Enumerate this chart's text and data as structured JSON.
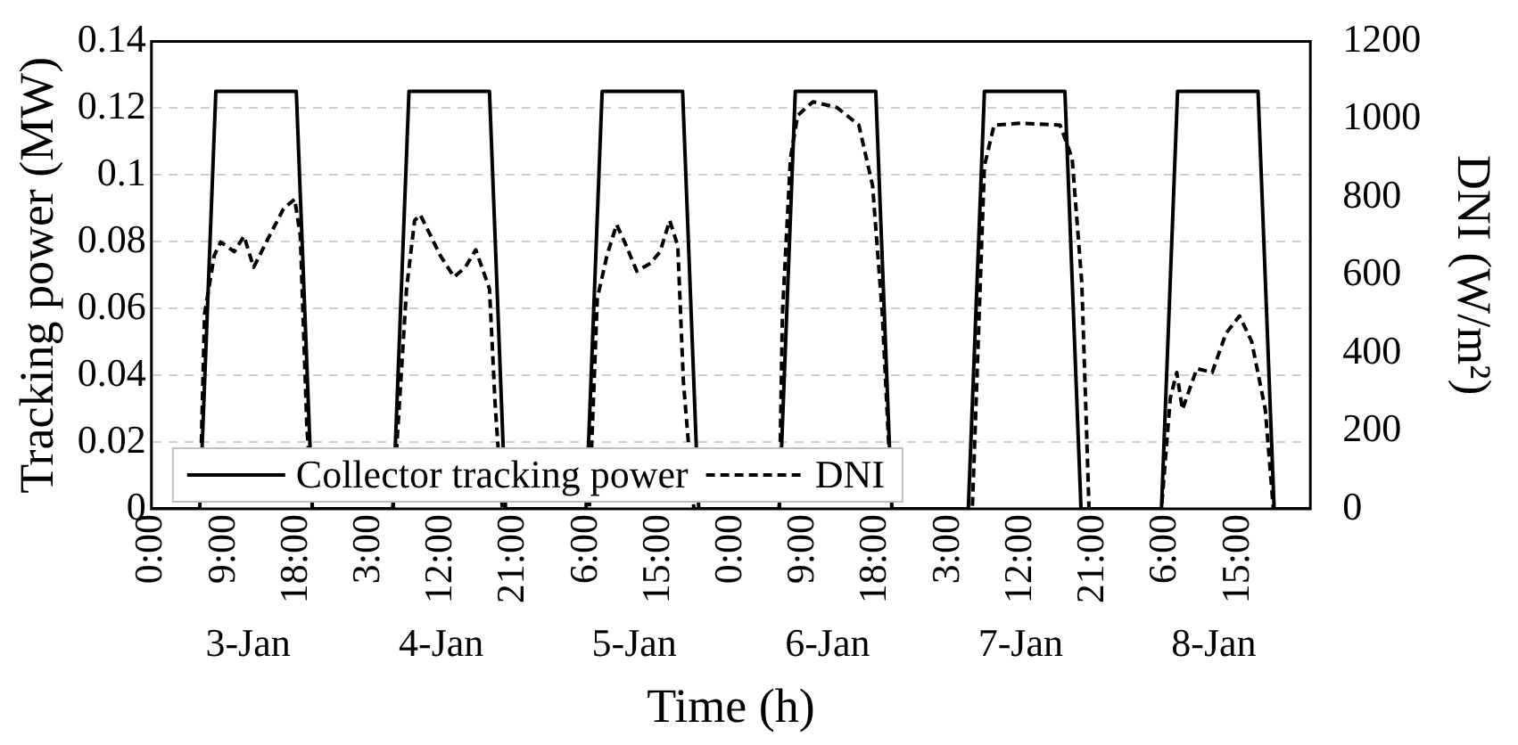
{
  "chart_data": {
    "type": "line",
    "xlabel": "Time (h)",
    "ylabel": "Tracking power (MW)",
    "y2label": "DNI (W/m²)",
    "xlim": [
      "--01-03T00:00",
      "--01-09T00:00"
    ],
    "xticks": [
      {
        "value": "--01-03T00:00",
        "label": "0:00"
      },
      {
        "value": "--01-03T09:00",
        "label": "9:00"
      },
      {
        "value": "--01-03T18:00",
        "label": "18:00"
      },
      {
        "value": "--01-04T03:00",
        "label": "3:00"
      },
      {
        "value": "--01-04T12:00",
        "label": "12:00"
      },
      {
        "value": "--01-04T21:00",
        "label": "21:00"
      },
      {
        "value": "--01-05T06:00",
        "label": "6:00"
      },
      {
        "value": "--01-05T15:00",
        "label": "15:00"
      },
      {
        "value": "--01-06T00:00",
        "label": "0:00"
      },
      {
        "value": "--01-06T09:00",
        "label": "9:00"
      },
      {
        "value": "--01-06T18:00",
        "label": "18:00"
      },
      {
        "value": "--01-07T03:00",
        "label": "3:00"
      },
      {
        "value": "--01-07T12:00",
        "label": "12:00"
      },
      {
        "value": "--01-07T21:00",
        "label": "21:00"
      },
      {
        "value": "--01-08T06:00",
        "label": "6:00"
      },
      {
        "value": "--01-08T15:00",
        "label": "15:00"
      }
    ],
    "ylim": [
      0,
      0.14
    ],
    "yticks": [
      0,
      0.02,
      0.04,
      0.06,
      0.08,
      0.1,
      0.12,
      0.14
    ],
    "y2lim": [
      0,
      1200
    ],
    "y2ticks": [
      0,
      200,
      400,
      600,
      800,
      1000,
      1200
    ],
    "grid": "y",
    "legend": "bottom left",
    "marker": "none",
    "series": [
      {
        "name": "Collector tracking power",
        "color": "#000000",
        "line_style": "solid",
        "x": [
          "--01-03T00:00",
          "--01-03T06:00",
          "--01-03T08:00",
          "--01-03T18:00",
          "--01-03T20:00",
          "--01-04T06:00",
          "--01-04T08:00",
          "--01-04T18:00",
          "--01-04T20:00",
          "--01-05T06:00",
          "--01-05T08:00",
          "--01-05T18:00",
          "--01-05T20:00",
          "--01-06T06:00",
          "--01-06T08:00",
          "--01-06T18:00",
          "--01-06T20:00",
          "--01-07T05:30",
          "--01-07T07:30",
          "--01-07T17:30",
          "--01-07T19:30",
          "--01-08T05:30",
          "--01-08T07:30",
          "--01-08T17:30",
          "--01-08T19:30",
          "--01-09T00:00"
        ],
        "values": [
          0,
          0,
          0.125,
          0.125,
          0,
          0,
          0.125,
          0.125,
          0,
          0,
          0.125,
          0.125,
          0,
          0,
          0.125,
          0.125,
          0,
          0,
          0.125,
          0.125,
          0,
          0,
          0.125,
          0.125,
          0,
          0
        ]
      },
      {
        "name": "DNI",
        "color": "#000000",
        "line_style": "dashed",
        "axis": "y2",
        "x": [
          "--01-03T00:00",
          "--01-03T06:00",
          "--01-03T06:36",
          "--01-03T07:48",
          "--01-03T08:36",
          "--01-03T10:18",
          "--01-03T11:30",
          "--01-03T12:42",
          "--01-03T14:24",
          "--01-03T16:24",
          "--01-03T17:48",
          "--01-03T18:30",
          "--01-03T19:18",
          "--01-03T20:00",
          "--01-04T06:00",
          "--01-04T07:42",
          "--01-04T08:42",
          "--01-04T09:24",
          "--01-04T11:54",
          "--01-04T13:36",
          "--01-04T15:00",
          "--01-04T16:18",
          "--01-04T18:00",
          "--01-04T18:42",
          "--01-04T19:36",
          "--01-05T06:24",
          "--01-05T07:24",
          "--01-05T08:36",
          "--01-05T09:48",
          "--01-05T11:00",
          "--01-05T12:18",
          "--01-05T14:00",
          "--01-05T15:12",
          "--01-05T16:24",
          "--01-05T17:24",
          "--01-05T18:06",
          "--01-05T19:24",
          "--01-06T06:00",
          "--01-06T06:24",
          "--01-06T07:24",
          "--01-06T08:18",
          "--01-06T10:12",
          "--01-06T13:12",
          "--01-06T15:54",
          "--01-06T17:36",
          "--01-06T18:48",
          "--01-06T20:00",
          "--01-07T06:00",
          "--01-07T07:30",
          "--01-07T08:42",
          "--01-07T12:00",
          "--01-07T16:54",
          "--01-07T18:24",
          "--01-07T19:36",
          "--01-07T20:30",
          "--01-08T05:30",
          "--01-08T06:36",
          "--01-08T07:24",
          "--01-08T08:06",
          "--01-08T09:54",
          "--01-08T11:48",
          "--01-08T13:30",
          "--01-08T15:12",
          "--01-08T16:42",
          "--01-08T18:24",
          "--01-08T19:24",
          "--01-09T00:00"
        ],
        "values": [
          0,
          0,
          500,
          650,
          685,
          660,
          700,
          620,
          690,
          770,
          795,
          700,
          215,
          0,
          0,
          565,
          740,
          755,
          650,
          595,
          620,
          665,
          565,
          270,
          0,
          0,
          540,
          650,
          730,
          675,
          610,
          630,
          660,
          740,
          675,
          325,
          0,
          0,
          500,
          900,
          1010,
          1045,
          1030,
          985,
          830,
          505,
          0,
          0,
          880,
          985,
          990,
          985,
          900,
          580,
          0,
          0,
          285,
          350,
          255,
          360,
          350,
          450,
          495,
          430,
          255,
          0,
          0
        ]
      }
    ],
    "annotations": [
      "3-Jan",
      "4-Jan",
      "5-Jan",
      "6-Jan",
      "7-Jan",
      "8-Jan"
    ]
  }
}
